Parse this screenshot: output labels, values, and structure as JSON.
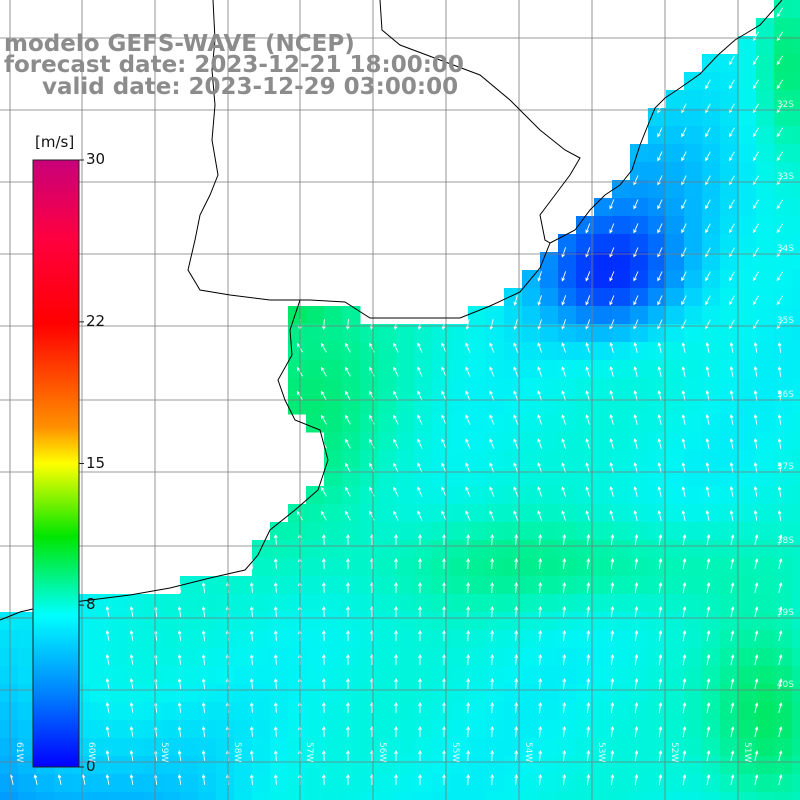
{
  "header": {
    "line1": "modelo GEFS-WAVE (NCEP)",
    "line2": "forecast date: 2023-12-21 18:00:00",
    "line3": "valid date: 2023-12-29 03:00:00"
  },
  "colorbar": {
    "unit": "[m/s]",
    "min": 0,
    "max": 30,
    "ticks": [
      {
        "label": "30",
        "value": 30
      },
      {
        "label": "22",
        "value": 22
      },
      {
        "label": "15",
        "value": 15
      },
      {
        "label": "8",
        "value": 8
      },
      {
        "label": "0",
        "value": 0
      }
    ],
    "colors": [
      "#c8007a",
      "#ff0000",
      "#ff8c00",
      "#ffff00",
      "#00e600",
      "#00ffff",
      "#0064ff",
      "#0000ff"
    ]
  },
  "lat_labels": [
    "32S",
    "33S",
    "34S",
    "35S",
    "36S",
    "37S",
    "38S",
    "39S",
    "40S"
  ],
  "lon_labels": [
    "61W",
    "60W",
    "59W",
    "58W",
    "57W",
    "56W",
    "55W",
    "54W",
    "53W",
    "52W",
    "51W"
  ],
  "map_data": {
    "field": "wind speed",
    "units": "m/s",
    "arrow_color": "#ffffff",
    "coast_color": "#000000",
    "land_color": "#ffffff"
  }
}
